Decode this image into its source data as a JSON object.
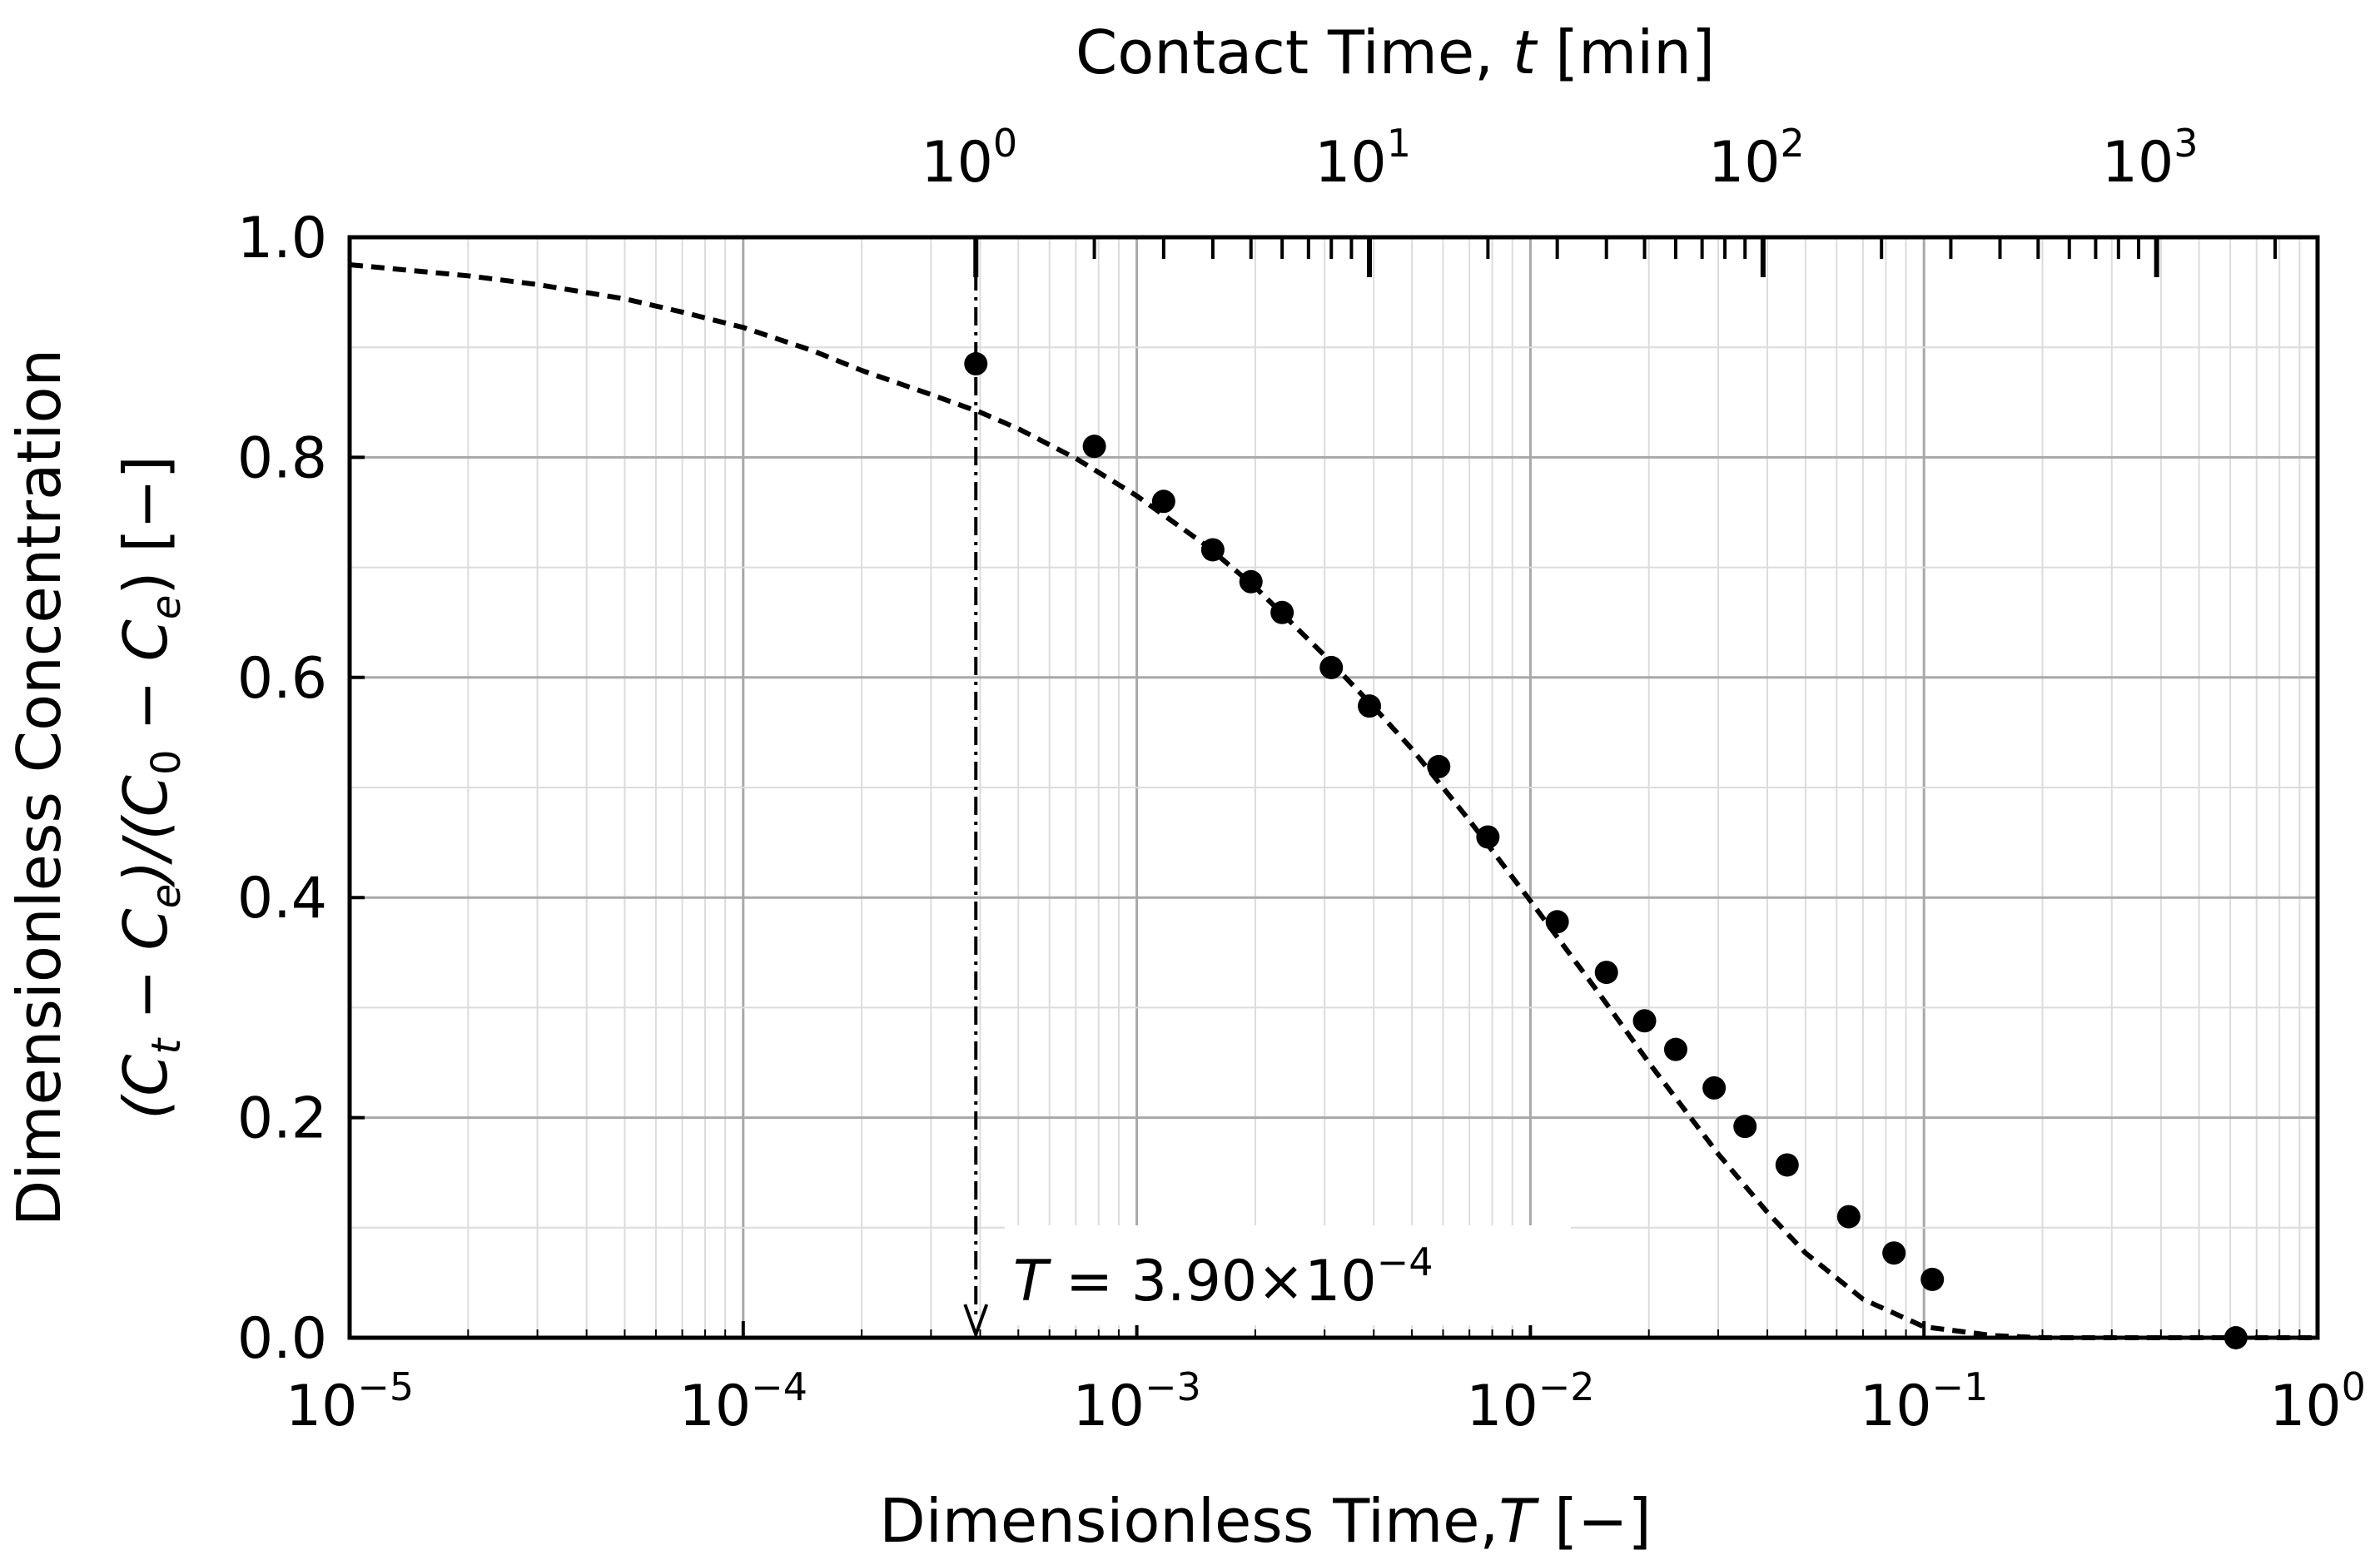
{
  "chart_data": {
    "type": "scatter",
    "x_scale": "log",
    "x_range": [
      1e-05,
      1
    ],
    "y_range": [
      0.0,
      1.0
    ],
    "grid": true,
    "x_axis_title": {
      "main": "Dimensionless Time,",
      "var": "T",
      "unit": " [−]"
    },
    "top_axis_title": {
      "main": "Contact Time, ",
      "var": "t",
      "unit": " [min]"
    },
    "y_axis_title_line1": "Dimensionless Concentration",
    "y_axis_title_line2": {
      "p1": "(C",
      "s1": "t",
      "p2": " − C",
      "s2": "e",
      "p3": ")/(C",
      "s3": "0",
      "p4": " − C",
      "s4": "e",
      "p5": ") [−]"
    },
    "x_ticks": [
      {
        "value": 1e-05,
        "base": "10",
        "exp": "−5"
      },
      {
        "value": 0.0001,
        "base": "10",
        "exp": "−4"
      },
      {
        "value": 0.001,
        "base": "10",
        "exp": "−3"
      },
      {
        "value": 0.01,
        "base": "10",
        "exp": "−2"
      },
      {
        "value": 0.1,
        "base": "10",
        "exp": "−1"
      },
      {
        "value": 1,
        "base": "10",
        "exp": "0"
      }
    ],
    "top_ticks": [
      {
        "value": 1,
        "base": "10",
        "exp": "0"
      },
      {
        "value": 10,
        "base": "10",
        "exp": "1"
      },
      {
        "value": 100,
        "base": "10",
        "exp": "2"
      },
      {
        "value": 1000,
        "base": "10",
        "exp": "3"
      }
    ],
    "top_axis_min_per_T": 2564,
    "y_ticks": [
      "0.0",
      "0.2",
      "0.4",
      "0.6",
      "0.8",
      "1.0"
    ],
    "y_tick_values": [
      0.0,
      0.2,
      0.4,
      0.6,
      0.8,
      1.0
    ],
    "annotation": {
      "T_value": 0.00039,
      "var": "T",
      "text": " = 3.90×10",
      "exp": "−4"
    },
    "series": [
      {
        "type": "scatter",
        "points": [
          {
            "x": 0.00039,
            "y": 0.885
          },
          {
            "x": 0.00078,
            "y": 0.81
          },
          {
            "x": 0.00117,
            "y": 0.76
          },
          {
            "x": 0.00156,
            "y": 0.716
          },
          {
            "x": 0.00195,
            "y": 0.687
          },
          {
            "x": 0.00234,
            "y": 0.659
          },
          {
            "x": 0.00312,
            "y": 0.609
          },
          {
            "x": 0.0039,
            "y": 0.574
          },
          {
            "x": 0.00585,
            "y": 0.519
          },
          {
            "x": 0.0078,
            "y": 0.455
          },
          {
            "x": 0.0117,
            "y": 0.378
          },
          {
            "x": 0.0156,
            "y": 0.332
          },
          {
            "x": 0.0195,
            "y": 0.288
          },
          {
            "x": 0.0234,
            "y": 0.262
          },
          {
            "x": 0.0293,
            "y": 0.227
          },
          {
            "x": 0.0351,
            "y": 0.192
          },
          {
            "x": 0.0449,
            "y": 0.157
          },
          {
            "x": 0.0644,
            "y": 0.11
          },
          {
            "x": 0.0839,
            "y": 0.077
          },
          {
            "x": 0.105,
            "y": 0.053
          },
          {
            "x": 0.62,
            "y": 0.0
          }
        ]
      },
      {
        "type": "line",
        "style": "dashed",
        "points": [
          {
            "x": 1e-05,
            "y": 0.975
          },
          {
            "x": 2e-05,
            "y": 0.965
          },
          {
            "x": 3e-05,
            "y": 0.957
          },
          {
            "x": 5e-05,
            "y": 0.944
          },
          {
            "x": 7e-05,
            "y": 0.932
          },
          {
            "x": 0.0001,
            "y": 0.918
          },
          {
            "x": 0.00015,
            "y": 0.897
          },
          {
            "x": 0.0002,
            "y": 0.879
          },
          {
            "x": 0.0003,
            "y": 0.857
          },
          {
            "x": 0.0004,
            "y": 0.841
          },
          {
            "x": 0.0005,
            "y": 0.826
          },
          {
            "x": 0.0007,
            "y": 0.799
          },
          {
            "x": 0.001,
            "y": 0.765
          },
          {
            "x": 0.0015,
            "y": 0.72
          },
          {
            "x": 0.002,
            "y": 0.682
          },
          {
            "x": 0.003,
            "y": 0.62
          },
          {
            "x": 0.004,
            "y": 0.573
          },
          {
            "x": 0.005,
            "y": 0.535
          },
          {
            "x": 0.007,
            "y": 0.47
          },
          {
            "x": 0.01,
            "y": 0.397
          },
          {
            "x": 0.015,
            "y": 0.312
          },
          {
            "x": 0.02,
            "y": 0.25
          },
          {
            "x": 0.03,
            "y": 0.167
          },
          {
            "x": 0.04,
            "y": 0.114
          },
          {
            "x": 0.05,
            "y": 0.077
          },
          {
            "x": 0.07,
            "y": 0.035
          },
          {
            "x": 0.1,
            "y": 0.01
          },
          {
            "x": 0.15,
            "y": 0.002
          },
          {
            "x": 0.2,
            "y": 0.0
          },
          {
            "x": 1,
            "y": 0.0
          }
        ]
      }
    ]
  }
}
